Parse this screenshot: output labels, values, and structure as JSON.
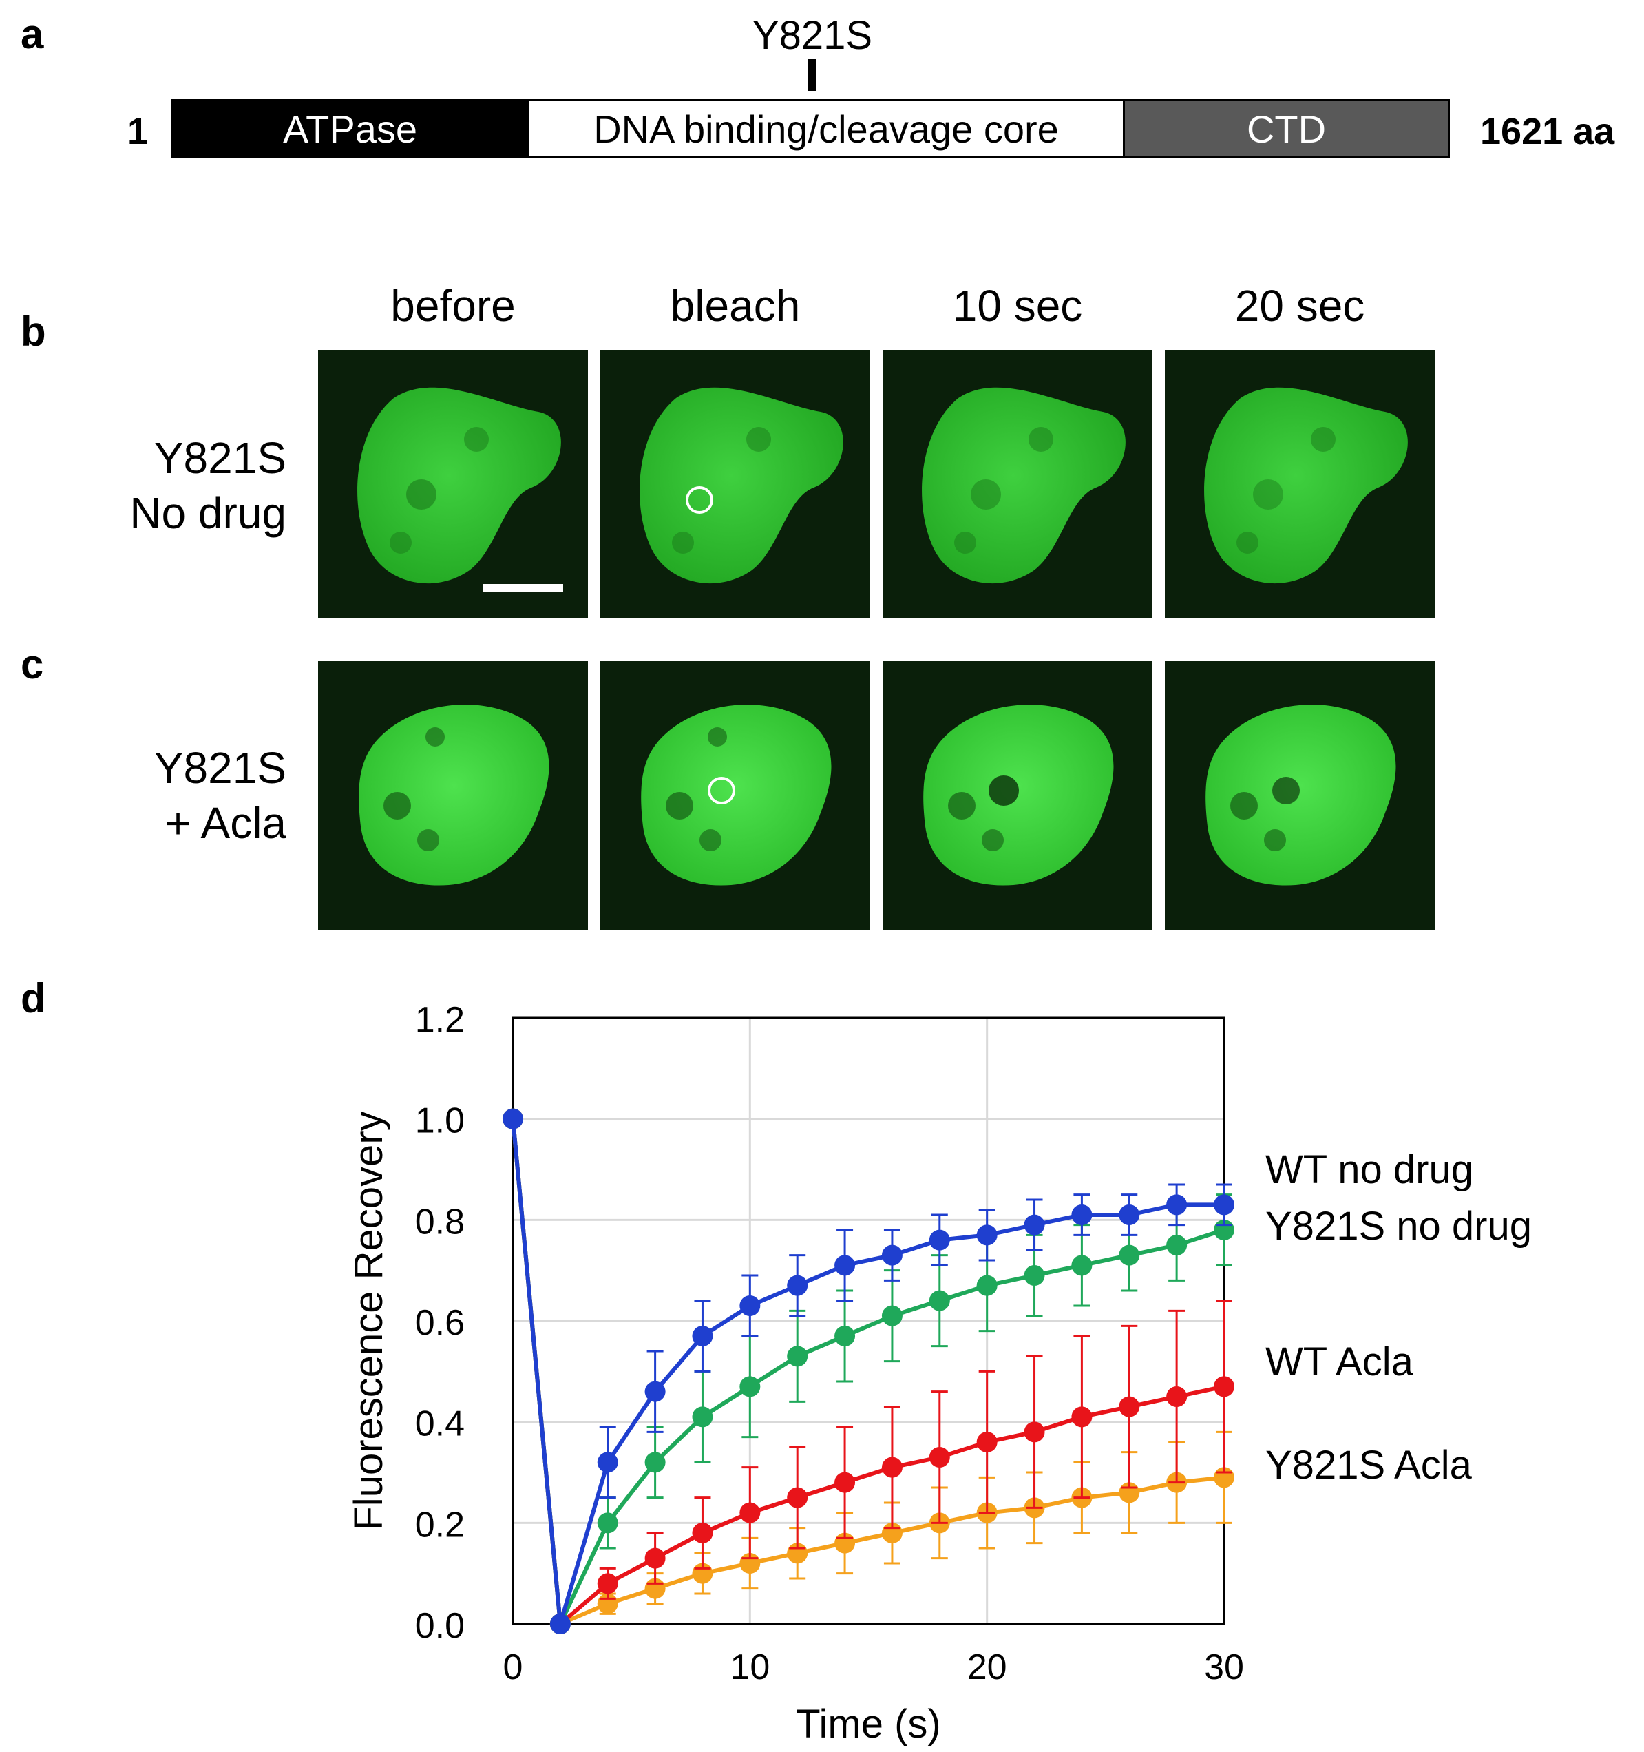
{
  "panel_a": {
    "letter": "a",
    "mutation_label": "Y821S",
    "start": "1",
    "end": "1621 aa",
    "domains": [
      {
        "name": "ATPase",
        "color": "#000000",
        "text_color": "#ffffff"
      },
      {
        "name": "DNA binding/cleavage core",
        "color": "#ffffff",
        "text_color": "#000000"
      },
      {
        "name": "CTD",
        "color": "#595959",
        "text_color": "#ffffff"
      }
    ]
  },
  "panel_b": {
    "letter": "b",
    "row_label_line1": "Y821S",
    "row_label_line2": "No drug"
  },
  "panel_c": {
    "letter": "c",
    "row_label_line1": "Y821S",
    "row_label_line2": "+ Acla"
  },
  "columns": [
    "before",
    "bleach",
    "10 sec",
    "20 sec"
  ],
  "panel_d": {
    "letter": "d"
  },
  "chart_data": {
    "type": "line",
    "title": "",
    "xlabel": "Time (s)",
    "ylabel": "Fluorescence Recovery",
    "xlim": [
      0,
      30
    ],
    "ylim": [
      0,
      1.2
    ],
    "xticks": [
      "0",
      "10",
      "20",
      "30"
    ],
    "yticks": [
      "0.0",
      "0.2",
      "0.4",
      "0.6",
      "0.8",
      "1.0",
      "1.2"
    ],
    "grid": true,
    "x": [
      0,
      2,
      4,
      6,
      8,
      10,
      12,
      14,
      16,
      18,
      20,
      22,
      24,
      26,
      28,
      30
    ],
    "series": [
      {
        "name": "WT no drug",
        "color": "#1f3fcf",
        "values": [
          1.0,
          0.0,
          0.32,
          0.46,
          0.57,
          0.63,
          0.67,
          0.71,
          0.73,
          0.76,
          0.77,
          0.79,
          0.81,
          0.81,
          0.83,
          0.83
        ],
        "errors": [
          0,
          0,
          0.07,
          0.08,
          0.07,
          0.06,
          0.06,
          0.07,
          0.05,
          0.05,
          0.05,
          0.05,
          0.04,
          0.04,
          0.04,
          0.04
        ]
      },
      {
        "name": "Y821S no drug",
        "color": "#1fa85a",
        "values": [
          1.0,
          0.0,
          0.2,
          0.32,
          0.41,
          0.47,
          0.53,
          0.57,
          0.61,
          0.64,
          0.67,
          0.69,
          0.71,
          0.73,
          0.75,
          0.78
        ],
        "errors": [
          0,
          0,
          0.05,
          0.07,
          0.09,
          0.1,
          0.09,
          0.09,
          0.09,
          0.09,
          0.09,
          0.08,
          0.08,
          0.07,
          0.07,
          0.07
        ]
      },
      {
        "name": "WT Acla",
        "color": "#e8141a",
        "values": [
          1.0,
          0.0,
          0.08,
          0.13,
          0.18,
          0.22,
          0.25,
          0.28,
          0.31,
          0.33,
          0.36,
          0.38,
          0.41,
          0.43,
          0.45,
          0.47
        ],
        "errors": [
          0,
          0,
          0.03,
          0.05,
          0.07,
          0.09,
          0.1,
          0.11,
          0.12,
          0.13,
          0.14,
          0.15,
          0.16,
          0.16,
          0.17,
          0.17
        ]
      },
      {
        "name": "Y821S Acla",
        "color": "#f5a11c",
        "values": [
          1.0,
          0.0,
          0.04,
          0.07,
          0.1,
          0.12,
          0.14,
          0.16,
          0.18,
          0.2,
          0.22,
          0.23,
          0.25,
          0.26,
          0.28,
          0.29
        ],
        "errors": [
          0,
          0,
          0.02,
          0.03,
          0.04,
          0.05,
          0.05,
          0.06,
          0.06,
          0.07,
          0.07,
          0.07,
          0.07,
          0.08,
          0.08,
          0.09
        ]
      }
    ]
  }
}
